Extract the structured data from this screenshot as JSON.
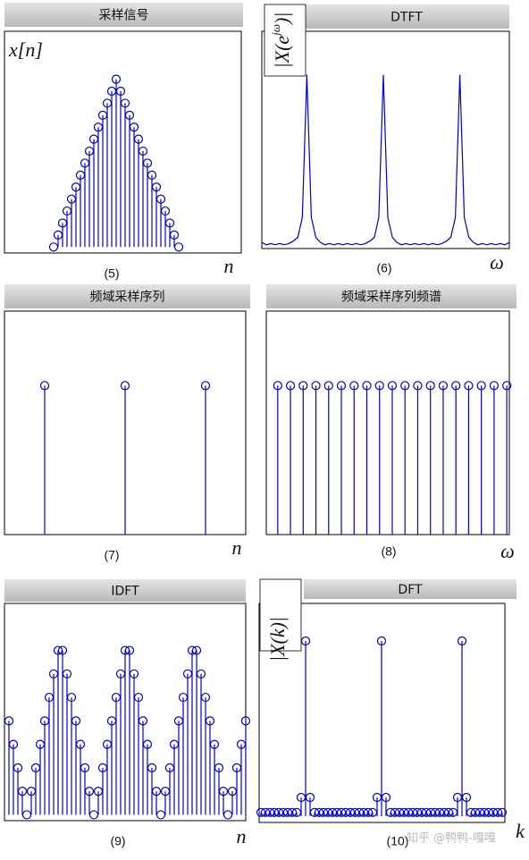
{
  "chart_data": [
    {
      "type": "stem",
      "title": "采样信号",
      "ylabel": [
        "x[n]"
      ],
      "xlabel": "n",
      "caption": "(5)",
      "color": "#0000cc",
      "values": [
        0,
        1,
        2,
        3,
        4,
        5,
        6,
        7,
        8,
        9,
        10,
        11,
        12,
        13,
        14,
        13,
        12,
        11,
        10,
        9,
        8,
        7,
        6,
        5,
        4,
        3,
        2,
        1,
        0
      ],
      "xlim": [
        -11,
        42
      ],
      "ylim": [
        -0.5,
        18
      ]
    },
    {
      "type": "line",
      "title": "DTFT",
      "ylabel": [
        "|X(e",
        "jω",
        ")|"
      ],
      "xlabel": "ω",
      "caption": "(6)",
      "color": "#0000cc",
      "values": [
        0.5,
        0.3,
        0.4,
        0.3,
        0.4,
        0.3,
        0.4,
        0.6,
        0.9,
        2.5,
        14,
        2.5,
        0.9,
        0.5,
        0.3,
        0.4,
        0.3,
        0.4,
        0.3,
        0.4,
        0.3,
        0.4,
        0.3,
        0.4,
        0.6,
        0.9,
        2.5,
        14,
        2.5,
        0.9,
        0.5,
        0.3,
        0.4,
        0.3,
        0.4,
        0.3,
        0.4,
        0.3,
        0.4,
        0.3,
        0.4,
        0.6,
        0.9,
        2.5,
        14,
        2.5,
        0.9,
        0.5,
        0.3,
        0.4,
        0.3,
        0.4,
        0.3,
        0.4,
        0.3,
        0.5
      ],
      "xlim": [
        0,
        55
      ],
      "ylim": [
        0,
        17.5
      ]
    },
    {
      "type": "stem",
      "title": "频域采样序列",
      "xlabel": "n",
      "caption": "(7)",
      "color": "#0000cc",
      "x": [
        1,
        3,
        5
      ],
      "values": [
        1,
        1,
        1
      ],
      "xlim": [
        0,
        6
      ],
      "ylim": [
        0,
        1.5
      ]
    },
    {
      "type": "stem",
      "title": "频域采样序列频谱",
      "xlabel": "ω",
      "caption": "(8)",
      "color": "#0000cc",
      "values": [
        1,
        1,
        1,
        1,
        1,
        1,
        1,
        1,
        1,
        1,
        1,
        1,
        1,
        1,
        1,
        1,
        1,
        1,
        1
      ],
      "xlim": [
        -0.9,
        18.2
      ],
      "ylim": [
        0,
        1.5
      ]
    },
    {
      "type": "stem",
      "title": "IDFT",
      "xlabel": "n",
      "caption": "(9)",
      "color": "#0000cc",
      "values": [
        8,
        6,
        4,
        2,
        0,
        2,
        4,
        6,
        8,
        10,
        12,
        14,
        14,
        12,
        10,
        8,
        6,
        4,
        2,
        0,
        2,
        4,
        6,
        8,
        10,
        12,
        14,
        14,
        12,
        10,
        8,
        6,
        4,
        2,
        0,
        2,
        4,
        6,
        8,
        10,
        12,
        14,
        14,
        12,
        10,
        8,
        6,
        4,
        2,
        0,
        2,
        4,
        6,
        8
      ],
      "xlim": [
        -1,
        53
      ],
      "ylim": [
        -0.5,
        18
      ]
    },
    {
      "type": "stem",
      "title": "DFT",
      "ylabel": [
        "|X(k)|"
      ],
      "xlabel": "k",
      "caption": "(10)",
      "color": "#0000cc",
      "values": [
        0.3,
        0.3,
        0.3,
        0.3,
        0.3,
        0.3,
        0.3,
        0.3,
        0.3,
        1.5,
        14,
        1.5,
        0.3,
        0.3,
        0.3,
        0.3,
        0.3,
        0.3,
        0.3,
        0.3,
        0.3,
        0.3,
        0.3,
        0.3,
        0.3,
        0.3,
        1.5,
        14,
        1.5,
        0.3,
        0.3,
        0.3,
        0.3,
        0.3,
        0.3,
        0.3,
        0.3,
        0.3,
        0.3,
        0.3,
        0.3,
        0.3,
        0.3,
        0.3,
        1.5,
        14,
        1.5,
        0.3,
        0.3,
        0.3,
        0.3,
        0.3,
        0.3,
        0.3,
        0.3
      ],
      "xlim": [
        -0.4,
        54.6
      ],
      "ylim": [
        -0.5,
        17
      ]
    }
  ],
  "watermark": "知乎 @鸭鸭-嘎嘎"
}
